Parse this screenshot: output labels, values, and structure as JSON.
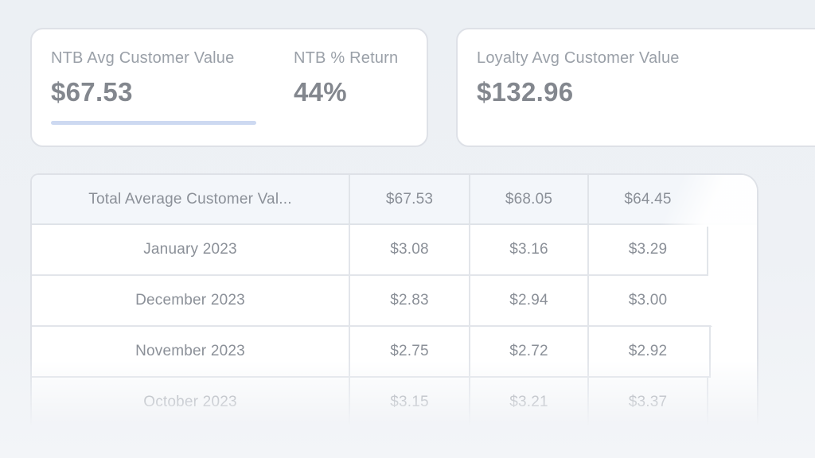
{
  "colors": {
    "page_bg": "#edf0f4",
    "header_bg": "#f3f6fa",
    "accent_underline": "#cdd9f1"
  },
  "kpi_cards": {
    "ntb": {
      "stats": [
        {
          "label": "NTB Avg Customer Value",
          "value": "$67.53"
        },
        {
          "label": "NTB % Return",
          "value": "44%"
        }
      ]
    },
    "loyalty": {
      "stats": [
        {
          "label": "Loyalty Avg Customer Value",
          "value": "$132.96"
        }
      ]
    }
  },
  "table": {
    "header": {
      "label": "Total Average Customer Val...",
      "values": [
        "$67.53",
        "$68.05",
        "$64.45"
      ]
    },
    "rows": [
      {
        "label": "January 2023",
        "values": [
          "$3.08",
          "$3.16",
          "$3.29"
        ]
      },
      {
        "label": "December 2023",
        "values": [
          "$2.83",
          "$2.94",
          "$3.00"
        ]
      },
      {
        "label": "November 2023",
        "values": [
          "$2.75",
          "$2.72",
          "$2.92"
        ]
      },
      {
        "label": "October 2023",
        "values": [
          "$3.15",
          "$3.21",
          "$3.37"
        ]
      }
    ]
  }
}
